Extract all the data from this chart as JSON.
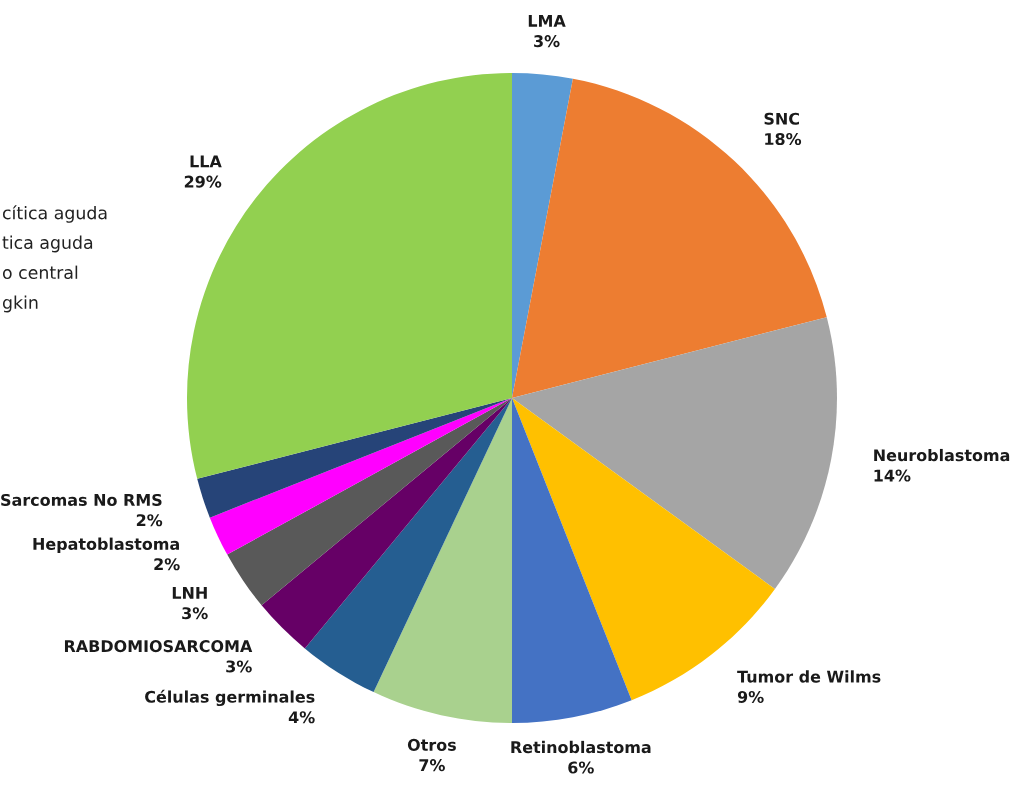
{
  "chart_data": {
    "type": "pie",
    "categories": [
      "LMA",
      "SNC",
      "Neuroblastoma",
      "Tumor de Wilms",
      "Retinoblastoma",
      "Otros",
      "Células germinales",
      "RABDOMIOSARCOMA",
      "LNH",
      "Hepatoblastoma",
      "Sarcomas No RMS",
      "LLA"
    ],
    "values": [
      3,
      18,
      14,
      9,
      6,
      7,
      4,
      3,
      3,
      2,
      2,
      29
    ],
    "colors": [
      "#5b9bd5",
      "#ed7d31",
      "#a5a5a5",
      "#ffc000",
      "#4472c4",
      "#a9d18e",
      "#255e91",
      "#660066",
      "#595959",
      "#ff00ff",
      "#264478",
      "#92d050"
    ],
    "value_labels": [
      "3%",
      "18%",
      "14%",
      "9%",
      "6%",
      "7%",
      "4%",
      "3%",
      "3%",
      "2%",
      "2%",
      "29%"
    ],
    "annotations": [
      "cítica aguda",
      "tica aguda",
      "o central",
      "gkin"
    ]
  }
}
